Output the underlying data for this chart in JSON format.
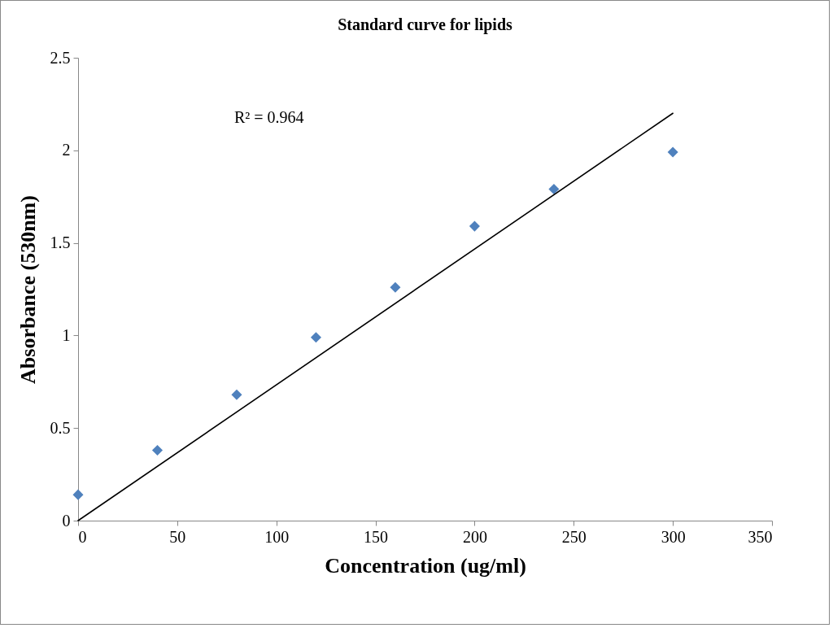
{
  "chart_data": {
    "type": "scatter",
    "title": "Standard curve for lipids",
    "xlabel": "Concentration (ug/ml)",
    "ylabel": "Absorbance (530nm)",
    "x": [
      0,
      40,
      80,
      120,
      160,
      200,
      240,
      300
    ],
    "series": [
      {
        "color": "#4f81bd",
        "marker": "diamond",
        "values": [
          0.14,
          0.38,
          0.68,
          0.99,
          1.26,
          1.59,
          1.79,
          1.99
        ]
      },
      {
        "type": "line",
        "color": "#000000",
        "x": [
          0,
          300
        ],
        "values": [
          0,
          2.2
        ]
      }
    ],
    "annotations": [
      "R² = 0.964"
    ],
    "xlim": [
      0,
      350
    ],
    "xticks": [
      0,
      50,
      100,
      150,
      200,
      250,
      300,
      350
    ],
    "ylim": [
      0,
      2.5
    ],
    "yticks": [
      0,
      0.5,
      1,
      1.5,
      2,
      2.5
    ],
    "grid": false,
    "line_style": "solid"
  }
}
